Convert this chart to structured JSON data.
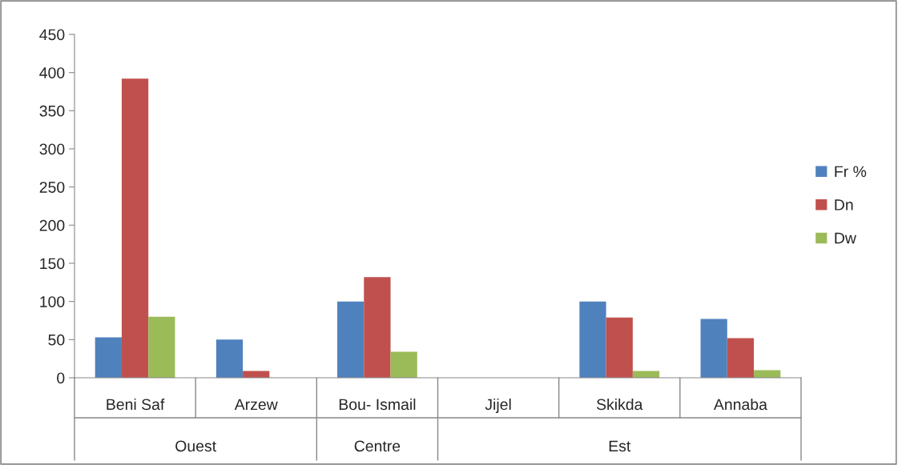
{
  "chart_data": {
    "type": "bar",
    "categories": [
      "Beni Saf",
      "Arzew",
      "Bou- Ismail",
      "Jijel",
      "Skikda",
      "Annaba"
    ],
    "series": [
      {
        "name": "Fr %",
        "color": "#4f81bd",
        "values": [
          53,
          50,
          100,
          null,
          100,
          77
        ]
      },
      {
        "name": "Dn",
        "color": "#c0504d",
        "values": [
          392,
          9,
          132,
          null,
          79,
          52
        ]
      },
      {
        "name": "Dw",
        "color": "#9bbb59",
        "values": [
          80,
          null,
          34,
          null,
          9,
          10
        ]
      }
    ],
    "annotations": [
      "Ouest",
      "Centre",
      "Est"
    ],
    "ylim": [
      0,
      450
    ],
    "yticks": [
      0,
      50,
      100,
      150,
      200,
      250,
      300,
      350,
      400,
      450
    ],
    "grid": false,
    "legend": "right"
  }
}
